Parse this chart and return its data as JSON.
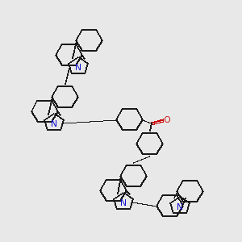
{
  "background_color": "#e8e8e8",
  "bond_color": "#1a1a1a",
  "N_color": "#0000cc",
  "O_color": "#cc0000",
  "linewidth": 1.3,
  "figsize": [
    3.0,
    3.0
  ],
  "dpi": 100
}
